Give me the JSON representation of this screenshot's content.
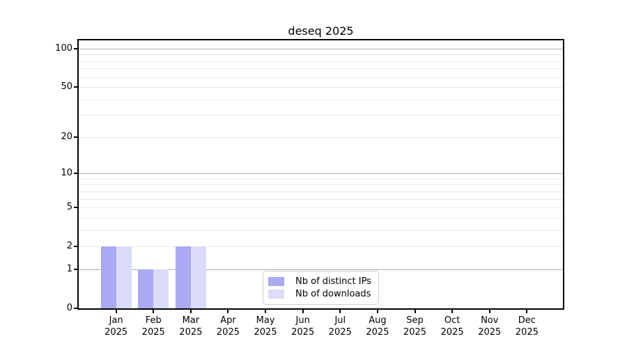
{
  "chart_data": {
    "type": "bar",
    "title": "deseq 2025",
    "categories": [
      "Jan 2025",
      "Feb 2025",
      "Mar 2025",
      "Apr 2025",
      "May 2025",
      "Jun 2025",
      "Jul 2025",
      "Aug 2025",
      "Sep 2025",
      "Oct 2025",
      "Nov 2025",
      "Dec 2025"
    ],
    "series": [
      {
        "name": "Nb of distinct IPs",
        "color": "#a9aaf3",
        "values": [
          2,
          1,
          2,
          0,
          0,
          0,
          0,
          0,
          0,
          0,
          0,
          0
        ]
      },
      {
        "name": "Nb of downloads",
        "color": "#dbdcf9",
        "values": [
          2,
          1,
          2,
          0,
          0,
          0,
          0,
          0,
          0,
          0,
          0,
          0
        ]
      }
    ],
    "xlabel": "",
    "ylabel": "",
    "yscale": "log1p",
    "ylim": [
      0,
      116
    ],
    "y_ticks": [
      0,
      1,
      2,
      5,
      10,
      20,
      50,
      100
    ],
    "y_major_grid": [
      1,
      10,
      100
    ],
    "y_minor_grid": [
      2,
      3,
      4,
      5,
      6,
      7,
      8,
      9,
      20,
      30,
      40,
      50,
      60,
      70,
      80,
      90
    ],
    "grid": true,
    "legend_position": "lower center",
    "colors": {
      "major_grid": "#b0b0b0",
      "minor_grid": "#e8e8e8",
      "axis": "#000000",
      "background": "#ffffff"
    }
  }
}
